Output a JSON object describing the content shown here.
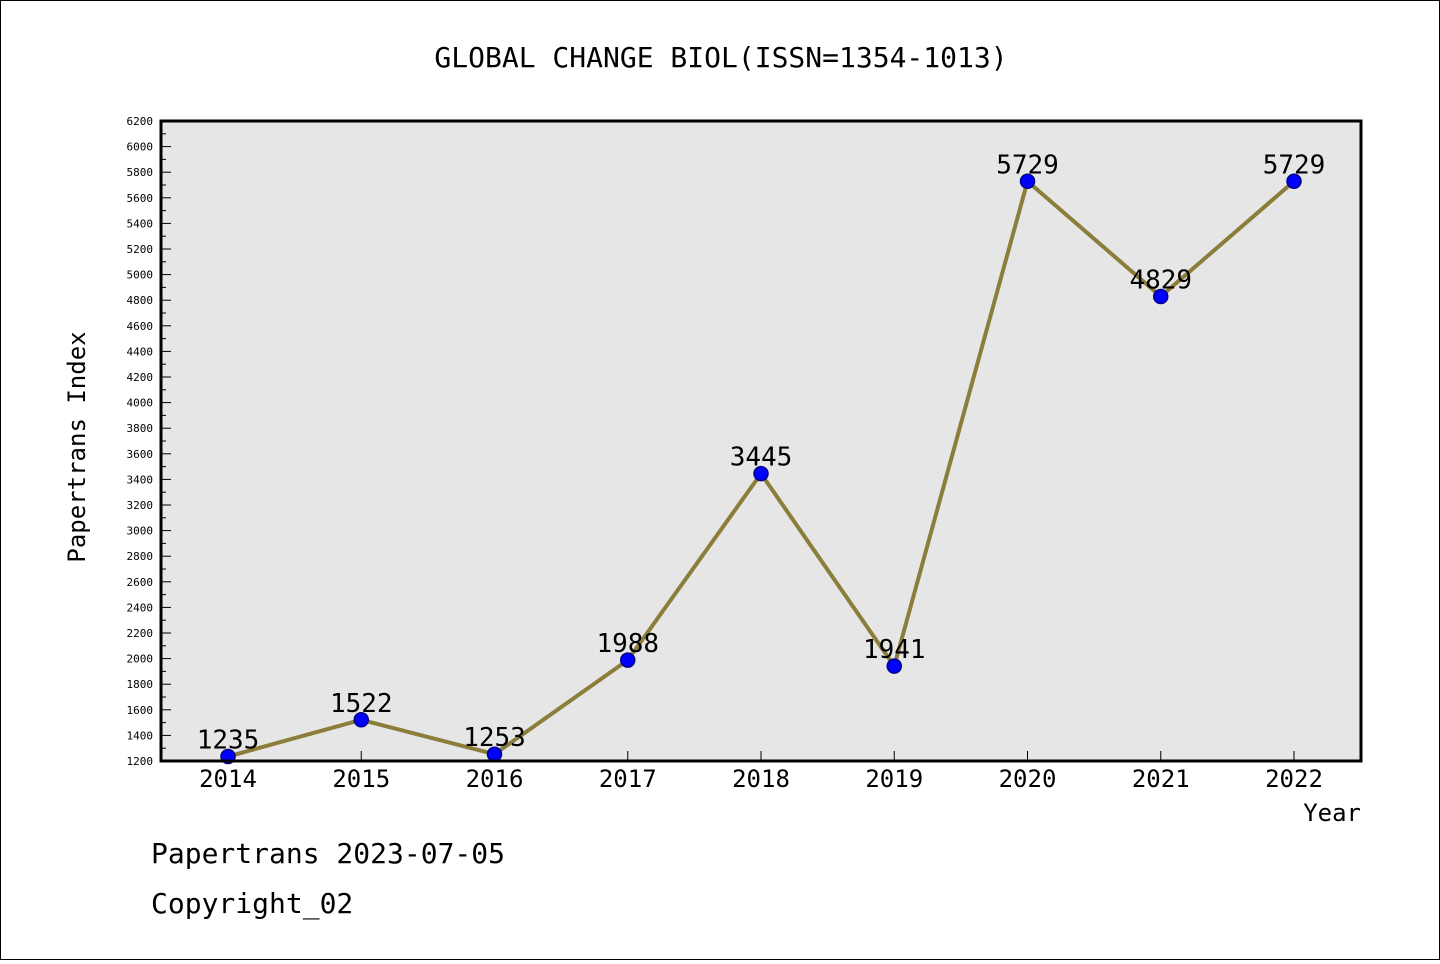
{
  "chart_data": {
    "type": "line",
    "title": "GLOBAL CHANGE BIOL(ISSN=1354-1013)",
    "xlabel": "Year",
    "ylabel": "Papertrans Index",
    "categories": [
      "2014",
      "2015",
      "2016",
      "2017",
      "2018",
      "2019",
      "2020",
      "2021",
      "2022"
    ],
    "series": [
      {
        "values": [
          1235,
          1522,
          1253,
          1988,
          3445,
          1941,
          5729,
          4829,
          5729
        ]
      }
    ],
    "data_labels": [
      "1235",
      "1522",
      "1253",
      "1988",
      "3445",
      "1941",
      "5729",
      "4829",
      "5729"
    ],
    "ylim": [
      1200,
      6200
    ],
    "yticks": [
      "1200",
      "1400",
      "1600",
      "1800",
      "2000",
      "2200",
      "2400",
      "2600",
      "2800",
      "3000",
      "3200",
      "3400",
      "3600",
      "3800",
      "4000",
      "4200",
      "4400",
      "4600",
      "4800",
      "5000",
      "5200",
      "5400",
      "5600",
      "5800",
      "6000",
      "6200"
    ],
    "grid": false,
    "colors": {
      "plot_background": "#e6e6e6",
      "line": "#8b7d3a",
      "marker_fill": "#0000ff",
      "marker_edge": "#00008b"
    }
  },
  "footer": {
    "date_line": "Papertrans 2023-07-05",
    "copyright_line": "Copyright_02"
  }
}
